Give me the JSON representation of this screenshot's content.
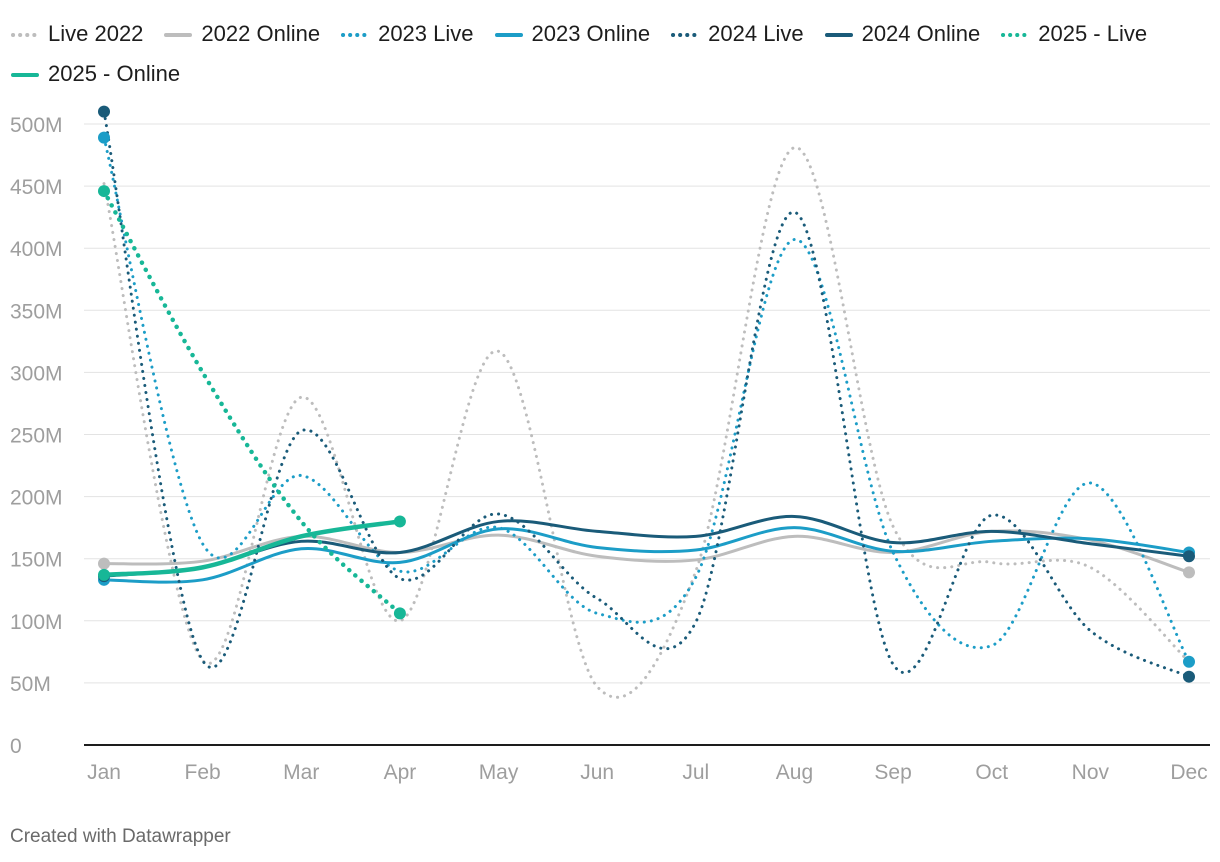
{
  "credit": "Created with Datawrapper",
  "chart_data": {
    "type": "line",
    "categories": [
      "Jan",
      "Feb",
      "Mar",
      "Apr",
      "May",
      "Jun",
      "Jul",
      "Aug",
      "Sep",
      "Oct",
      "Nov",
      "Dec"
    ],
    "y_ticks": [
      {
        "value": 0,
        "label": "0"
      },
      {
        "value": 50,
        "label": "50M"
      },
      {
        "value": 100,
        "label": "100M"
      },
      {
        "value": 150,
        "label": "150M"
      },
      {
        "value": 200,
        "label": "200M"
      },
      {
        "value": 250,
        "label": "250M"
      },
      {
        "value": 300,
        "label": "300M"
      },
      {
        "value": 350,
        "label": "350M"
      },
      {
        "value": 400,
        "label": "400M"
      },
      {
        "value": 450,
        "label": "450M"
      },
      {
        "value": 500,
        "label": "500M"
      }
    ],
    "ylim": [
      0,
      510
    ],
    "y_unit": "M",
    "grid": true,
    "legend_position": "top",
    "series": [
      {
        "name": "Live 2022",
        "color": "#bdbdbd",
        "style": "dotted",
        "values": [
          452,
          68,
          280,
          100,
          317,
          47,
          140,
          481,
          176,
          147,
          143,
          67
        ],
        "end_markers": false
      },
      {
        "name": "2022 Online",
        "color": "#bdbdbd",
        "style": "solid",
        "values": [
          146,
          148,
          168,
          155,
          169,
          152,
          149,
          168,
          155,
          172,
          165,
          139
        ],
        "end_markers": true
      },
      {
        "name": "2023 Live",
        "color": "#1c9dc7",
        "style": "dotted",
        "values": [
          489,
          162,
          217,
          140,
          175,
          106,
          135,
          407,
          155,
          80,
          211,
          67
        ],
        "end_markers": true
      },
      {
        "name": "2023 Online",
        "color": "#1c9dc7",
        "style": "solid",
        "values": [
          133,
          133,
          158,
          147,
          174,
          159,
          157,
          175,
          156,
          164,
          166,
          155
        ],
        "end_markers": true
      },
      {
        "name": "2024 Live",
        "color": "#1a5b79",
        "style": "dotted",
        "values": [
          510,
          68,
          253,
          134,
          186,
          118,
          99,
          429,
          65,
          185,
          92,
          55
        ],
        "end_markers": true
      },
      {
        "name": "2024 Online",
        "color": "#1a5b79",
        "style": "solid",
        "values": [
          136,
          143,
          164,
          155,
          180,
          172,
          168,
          184,
          163,
          172,
          162,
          152
        ],
        "end_markers": true
      },
      {
        "name": "2025 - Live",
        "color": "#17b797",
        "style": "dotted",
        "values": [
          446,
          300,
          180,
          106,
          null,
          null,
          null,
          null,
          null,
          null,
          null,
          null
        ],
        "end_markers": true
      },
      {
        "name": "2025 - Online",
        "color": "#17b797",
        "style": "solid",
        "values": [
          137,
          143,
          168,
          180,
          null,
          null,
          null,
          null,
          null,
          null,
          null,
          null
        ],
        "end_markers": true
      }
    ]
  }
}
